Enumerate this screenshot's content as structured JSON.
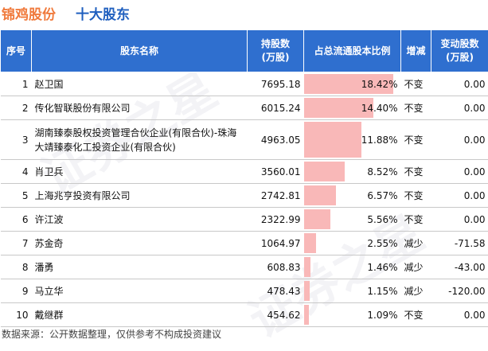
{
  "header": {
    "company": "锦鸡股份",
    "section": "十大股东"
  },
  "table": {
    "headers": {
      "index": "序号",
      "name": "股东名称",
      "shares_line1": "持股数",
      "shares_line2": "(万股)",
      "ratio": "占总流通股本比例",
      "change": "增减",
      "delta_line1": "变动股数",
      "delta_line2": "(万股)"
    },
    "rows": [
      {
        "index": "1",
        "name": "赵卫国",
        "shares": "7695.18",
        "ratio": "18.42%",
        "ratio_value": 18.42,
        "change": "不变",
        "delta": "0.00"
      },
      {
        "index": "2",
        "name": "传化智联股份有限公司",
        "shares": "6015.24",
        "ratio": "14.40%",
        "ratio_value": 14.4,
        "change": "不变",
        "delta": "0.00"
      },
      {
        "index": "3",
        "name": "湖南臻泰股权投资管理合伙企业(有限合伙)-珠海大靖臻泰化工投资企业(有限合伙)",
        "shares": "4963.05",
        "ratio": "11.88%",
        "ratio_value": 11.88,
        "change": "不变",
        "delta": "0.00"
      },
      {
        "index": "4",
        "name": "肖卫兵",
        "shares": "3560.01",
        "ratio": "8.52%",
        "ratio_value": 8.52,
        "change": "不变",
        "delta": "0.00"
      },
      {
        "index": "5",
        "name": "上海兆亨投资有限公司",
        "shares": "2742.81",
        "ratio": "6.57%",
        "ratio_value": 6.57,
        "change": "不变",
        "delta": "0.00"
      },
      {
        "index": "6",
        "name": "许江波",
        "shares": "2322.99",
        "ratio": "5.56%",
        "ratio_value": 5.56,
        "change": "不变",
        "delta": "0.00"
      },
      {
        "index": "7",
        "name": "苏金奇",
        "shares": "1064.97",
        "ratio": "2.55%",
        "ratio_value": 2.55,
        "change": "减少",
        "delta": "-71.58"
      },
      {
        "index": "8",
        "name": "潘勇",
        "shares": "608.83",
        "ratio": "1.46%",
        "ratio_value": 1.46,
        "change": "减少",
        "delta": "-43.00"
      },
      {
        "index": "9",
        "name": "马立华",
        "shares": "478.43",
        "ratio": "1.15%",
        "ratio_value": 1.15,
        "change": "减少",
        "delta": "-120.00"
      },
      {
        "index": "10",
        "name": "戴继群",
        "shares": "454.62",
        "ratio": "1.09%",
        "ratio_value": 1.09,
        "change": "不变",
        "delta": "0.00"
      }
    ]
  },
  "footer": "数据来源：公开数据整理，仅供参考不构成投资建议",
  "colors": {
    "company": "#f07a3c",
    "section": "#1f5fbf",
    "header_bg": "#2f6fcf",
    "bar": "#f9b8b8",
    "decrease": "#2a9a2a"
  },
  "watermark": "证券之星"
}
